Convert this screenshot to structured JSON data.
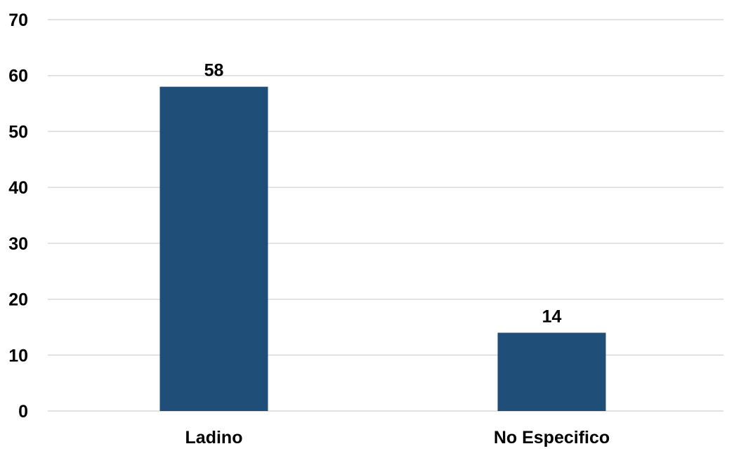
{
  "chart_data": {
    "type": "bar",
    "categories": [
      "Ladino",
      "No Especifico"
    ],
    "values": [
      58,
      14
    ],
    "data_labels": [
      "58",
      "14"
    ],
    "title": "",
    "xlabel": "",
    "ylabel": "",
    "ylim": [
      0,
      70
    ],
    "yticks": [
      "0",
      "10",
      "20",
      "30",
      "40",
      "50",
      "60",
      "70"
    ],
    "grid": true,
    "legend": "none",
    "bar_color": "#1f4e79"
  }
}
